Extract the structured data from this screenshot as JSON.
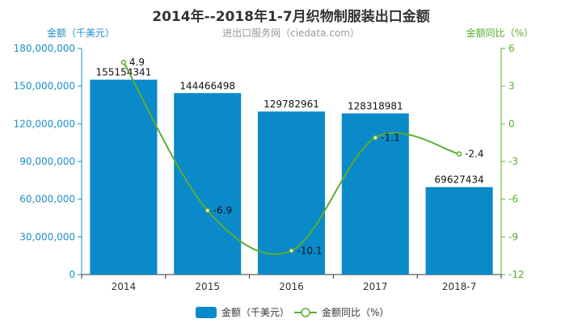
{
  "chart_data": {
    "type": "bar",
    "title": "2014年--2018年1-7月织物制服装出口金额",
    "subtitle": "进出口服务网（ciedata.com）",
    "categories": [
      "2014",
      "2015",
      "2016",
      "2017",
      "2018-7"
    ],
    "series": [
      {
        "name": "金额（千美元）",
        "type": "bar",
        "axis": "left",
        "values": [
          155154341,
          144466498,
          129782961,
          128318981,
          69627434
        ],
        "value_labels": [
          "155154341",
          "144466498",
          "129782961",
          "128318981",
          "69627434"
        ],
        "color": "#0a8ac9"
      },
      {
        "name": "金额同比（%）",
        "type": "line",
        "axis": "right",
        "smooth": true,
        "values": [
          4.9,
          -6.9,
          -10.1,
          -1.1,
          -2.4
        ],
        "value_labels": [
          "4.9",
          "-6.9",
          "-10.1",
          "-1.1",
          "-2.4"
        ],
        "color": "#5aae2e"
      }
    ],
    "y_left": {
      "label": "金额（千美元）",
      "range": [
        0,
        180000000
      ],
      "ticks": [
        0,
        30000000,
        60000000,
        90000000,
        120000000,
        150000000,
        180000000
      ],
      "tick_labels": [
        "0",
        "30,000,000",
        "60,000,000",
        "90,000,000",
        "120,000,000",
        "150,000,000",
        "180,000,000"
      ],
      "color": "#1a8fc8"
    },
    "y_right": {
      "label": "金额同比（%）",
      "range": [
        -12,
        6
      ],
      "ticks": [
        -12,
        -9,
        -6,
        -3,
        0,
        3,
        6
      ],
      "tick_labels": [
        "-12",
        "-9",
        "-6",
        "-3",
        "0",
        "3",
        "6"
      ],
      "color": "#5aae2e"
    },
    "grid": false,
    "legend": {
      "position": "bottom",
      "items": [
        "金额（千美元）",
        "金额同比（%）"
      ]
    }
  }
}
